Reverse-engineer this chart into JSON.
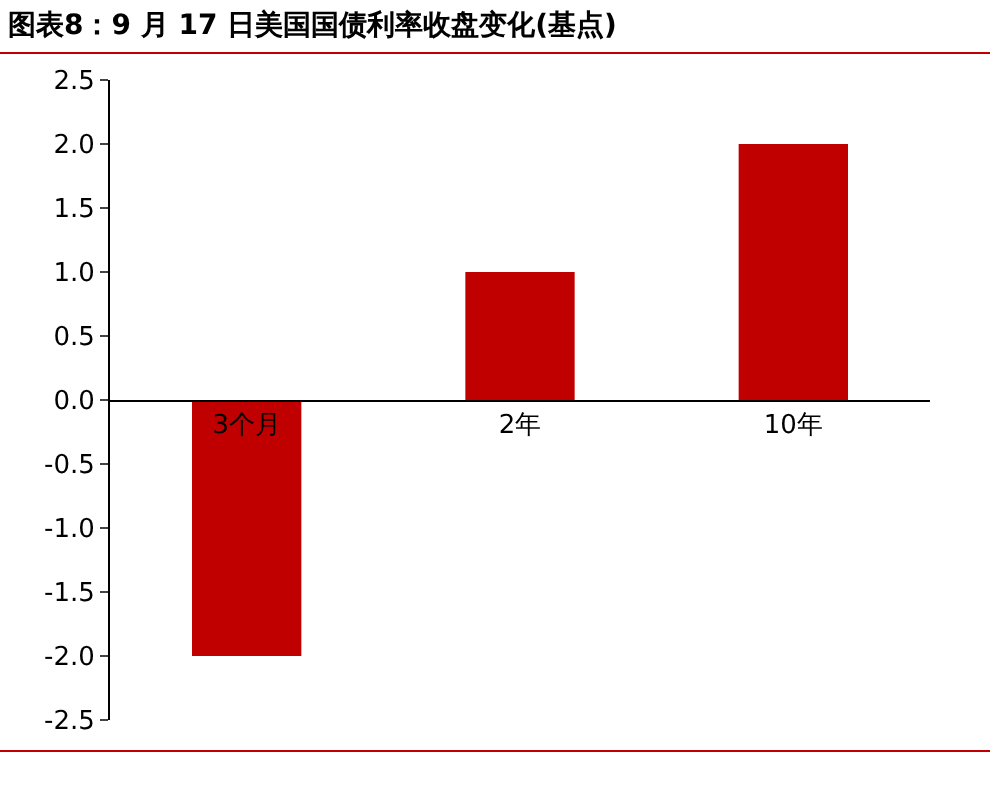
{
  "chart_data": {
    "type": "bar",
    "title": "图表8：9 月 17 日美国国债利率收盘变化(基点)",
    "categories": [
      "3个月",
      "2年",
      "10年"
    ],
    "values": [
      -2,
      1,
      2
    ],
    "color": "#c00000",
    "ylim": [
      -2.5,
      2.5
    ],
    "yticks": [
      2.5,
      {
        "value": 2,
        "label": "2.0"
      },
      1.5,
      {
        "value": 1,
        "label": "1.0"
      },
      0.5,
      {
        "value": 0,
        "label": "0.0"
      },
      -0.5,
      {
        "value": -1,
        "label": "-1.0"
      },
      -1.5,
      {
        "value": -2,
        "label": "-2.0"
      },
      -2.5
    ],
    "grid": false,
    "legend": false
  }
}
